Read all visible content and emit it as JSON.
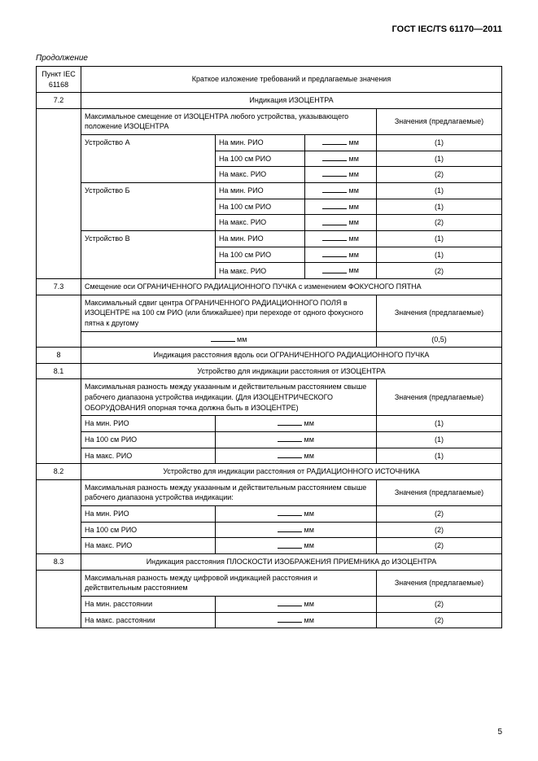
{
  "document": {
    "standard_id": "ГОСТ IEC/TS 61170—2011",
    "continuation": "Продолжение",
    "page_number": "5"
  },
  "header": {
    "col_punkt": "Пункт IEC 61168",
    "col_req": "Краткое изложение требований и предлагаемые значения"
  },
  "unit_mm": "мм",
  "suggested_values_label": "Значения (предлагаемые)",
  "sections": {
    "s7_2": {
      "num": "7.2",
      "title": "Индикация ИЗОЦЕНТРА",
      "max_offset_desc": "Максимальное смещение от ИЗОЦЕНТРА любого устройства, указывающего положение ИЗОЦЕНТРА",
      "dev_a": "Устройство А",
      "dev_b": "Устройство Б",
      "dev_c": "Устройство В",
      "cond_min": "На мин. РИО",
      "cond_100": "На 100 см РИО",
      "cond_max": "На макс. РИО",
      "val_1": "(1)",
      "val_2": "(2)"
    },
    "s7_3": {
      "num": "7.3",
      "title": "Смещение оси ОГРАНИЧЕННОГО РАДИАЦИОННОГО ПУЧКА с изменением ФОКУСНОГО ПЯТНА",
      "desc": "Максимальный сдвиг центра ОГРАНИЧЕННОГО РАДИАЦИОННОГО ПОЛЯ в ИЗОЦЕНТРЕ на 100 см РИО (или ближайшее) при переходе от одного фокусного пятна к другому",
      "val": "(0,5)"
    },
    "s8": {
      "num": "8",
      "title": "Индикация расстояния вдоль оси ОГРАНИЧЕННОГО РАДИАЦИОННОГО ПУЧКА"
    },
    "s8_1": {
      "num": "8.1",
      "title": "Устройство для индикации расстояния от ИЗОЦЕНТРА",
      "desc": "Максимальная разность между указанным и действительным расстоянием свыше рабочего диапазона устройства индикации. (Для ИЗОЦЕНТРИЧЕСКОГО ОБОРУДОВАНИЯ опорная точка должна быть в ИЗОЦЕНТРЕ)",
      "cond_min": "На мин. РИО",
      "cond_100": "На 100 см РИО",
      "cond_max": "На макс. РИО",
      "val": "(1)"
    },
    "s8_2": {
      "num": "8.2",
      "title": "Устройство для индикации расстояния от РАДИАЦИОННОГО ИСТОЧНИКА",
      "desc": "Максимальная разность между указанным и действительным расстоянием свыше рабочего диапазона устройства индикации:",
      "cond_min": "На мин. РИО",
      "cond_100": "На 100 см РИО",
      "cond_max": "На макс. РИО",
      "val": "(2)"
    },
    "s8_3": {
      "num": "8.3",
      "title": "Индикация расстояния ПЛОСКОСТИ ИЗОБРАЖЕНИЯ ПРИЕМНИКА до ИЗОЦЕНТРА",
      "desc": "Максимальная разность между цифровой индикацией расстояния и действительным расстоянием",
      "cond_min": "На мин. расстоянии",
      "cond_max": "На макс. расстоянии",
      "val": "(2)"
    }
  }
}
